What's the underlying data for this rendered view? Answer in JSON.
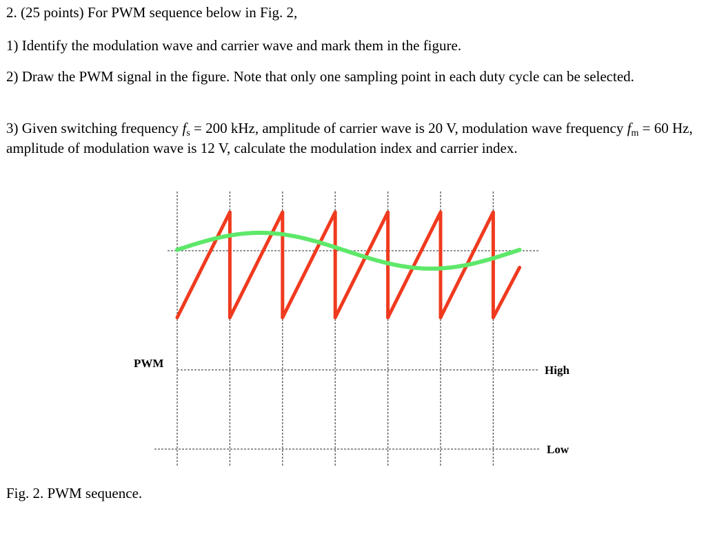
{
  "problem": {
    "title": "2. (25 points) For PWM sequence below in Fig. 2,",
    "q1": "1) Identify the modulation wave and carrier wave and mark them in the figure.",
    "q2": "2) Draw the PWM signal in the figure. Note that only one sampling point in each duty cycle can be selected.",
    "q3": {
      "part1": "3) Given switching frequency ",
      "fs_symbol": "f",
      "fs_sub": "s",
      "part2": " = 200 kHz, amplitude of carrier wave is 20 V, modulation wave frequency ",
      "fm_symbol": "f",
      "fm_sub": "m",
      "part3": " = 60 Hz, amplitude of modulation wave is 12 V, calculate the modulation index and carrier index."
    }
  },
  "figure": {
    "pwm_label": "PWM",
    "high_label": "High",
    "low_label": "Low",
    "caption": "Fig. 2. PWM sequence.",
    "colors": {
      "carrier": "#f03a1e",
      "modulation": "#5ee86a",
      "grid": "#555555"
    },
    "carrier_periods": 6,
    "carrier_period_fraction_last": 0.5,
    "modulation_cycles_shown": 1
  }
}
